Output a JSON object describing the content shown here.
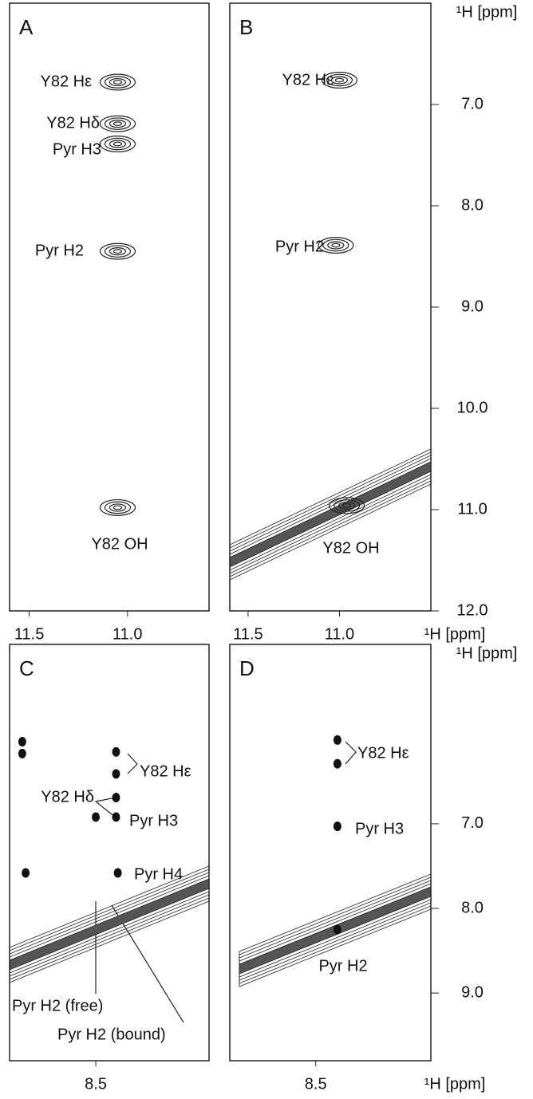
{
  "chart_data": [
    {
      "type": "contour",
      "panel_label": "A",
      "xlim": [
        11.6,
        10.585
      ],
      "ylim": [
        6.0,
        12.0
      ],
      "xticks": [
        11.5,
        {
          "value": 11,
          "label": "11.0"
        }
      ],
      "x": [
        11.05,
        11.05,
        11.05,
        11.05,
        11.05
      ],
      "values": [
        6.78,
        7.19,
        7.39,
        8.45,
        10.98
      ],
      "annotations": [
        "Y82 Hε",
        "Y82 Hδ",
        "Pyr H3",
        "Pyr H2",
        "Y82 OH"
      ]
    },
    {
      "type": "contour",
      "panel_label": "B",
      "xlim": [
        11.6,
        10.5
      ],
      "ylim": [
        6.0,
        12.0
      ],
      "xticks": [
        11.5,
        {
          "value": 11,
          "label": "11.0"
        }
      ],
      "yticks": [
        {
          "value": 7,
          "label": "7.0"
        },
        {
          "value": 8,
          "label": "8.0"
        },
        {
          "value": 9,
          "label": "9.0"
        },
        {
          "value": 10,
          "label": "10.0"
        },
        {
          "value": 11,
          "label": "11.0"
        },
        {
          "value": 12,
          "label": "12.0"
        }
      ],
      "xlabel": "¹H [ppm]",
      "ylabel": "¹H [ppm]",
      "x": [
        11.0,
        11.02,
        10.96
      ],
      "values": [
        6.76,
        8.39,
        10.96
      ],
      "annotations": [
        "Y82 Hε",
        "Pyr H2",
        "Y82 OH"
      ]
    },
    {
      "type": "contour",
      "panel_label": "C",
      "xlim": [
        9.52,
        7.16
      ],
      "ylim": [
        4.88,
        9.8
      ],
      "xticks": [
        8.5
      ],
      "x": [
        8.26,
        8.26,
        8.26,
        8.26,
        8.5,
        9.37,
        9.37,
        8.24,
        9.33
      ],
      "values": [
        6.15,
        6.41,
        6.69,
        6.92,
        6.92,
        6.03,
        6.17,
        7.58,
        7.58
      ],
      "annotations": [
        "Y82 Hε",
        "Y82 Hδ",
        "Pyr H3",
        "Pyr H4",
        "Pyr H2 (free)",
        "Pyr H2 (bound)"
      ]
    },
    {
      "type": "contour",
      "panel_label": "D",
      "xlim": [
        9.53,
        7.12
      ],
      "ylim": [
        4.88,
        9.8
      ],
      "xticks": [
        8.5
      ],
      "yticks": [
        {
          "value": 7,
          "label": "7.0"
        },
        {
          "value": 8,
          "label": "8.0"
        },
        {
          "value": 9,
          "label": "9.0"
        }
      ],
      "xlabel": "¹H [ppm]",
      "ylabel": "¹H [ppm]",
      "x": [
        8.24,
        8.24,
        8.24,
        8.24
      ],
      "values": [
        6.01,
        6.29,
        7.03,
        8.25
      ],
      "annotations": [
        "Y82 Hε",
        "Pyr H3",
        "Pyr H2"
      ]
    }
  ]
}
